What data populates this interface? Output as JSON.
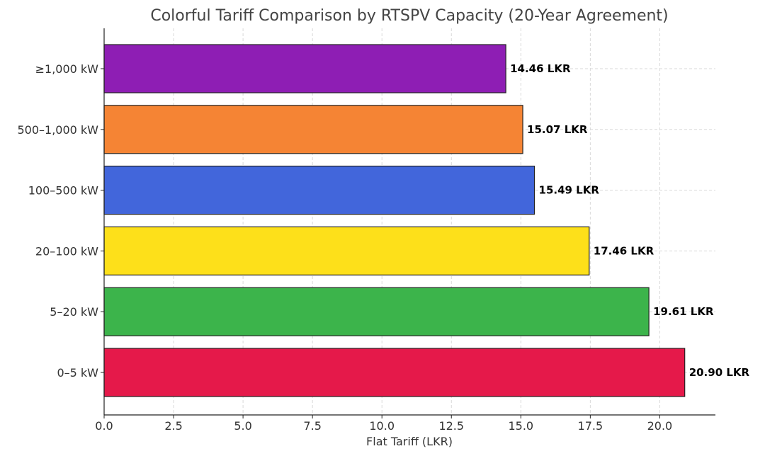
{
  "chart_data": {
    "type": "bar",
    "orientation": "horizontal",
    "title": "Colorful Tariff Comparison by RTSPV Capacity (20-Year Agreement)",
    "xlabel": "Flat Tariff (LKR)",
    "ylabel": "",
    "xlim": [
      0,
      22
    ],
    "xticks": [
      0.0,
      2.5,
      5.0,
      7.5,
      10.0,
      12.5,
      15.0,
      17.5,
      20.0
    ],
    "xtick_labels": [
      "0.0",
      "2.5",
      "5.0",
      "7.5",
      "10.0",
      "12.5",
      "15.0",
      "17.5",
      "20.0"
    ],
    "grid": true,
    "categories": [
      "≥1,000 kW",
      "500–1,000 kW",
      "100–500 kW",
      "20–100 kW",
      "5–20 kW",
      "0–5 kW"
    ],
    "values": [
      14.46,
      15.07,
      15.49,
      17.46,
      19.61,
      20.9
    ],
    "data_labels": [
      "14.46 LKR",
      "15.07 LKR",
      "15.49 LKR",
      "17.46 LKR",
      "19.61 LKR",
      "20.90 LKR"
    ],
    "colors": [
      "#8E1EB4",
      "#F58434",
      "#4266DB",
      "#FDE01A",
      "#3CB44B",
      "#E5194A"
    ]
  }
}
